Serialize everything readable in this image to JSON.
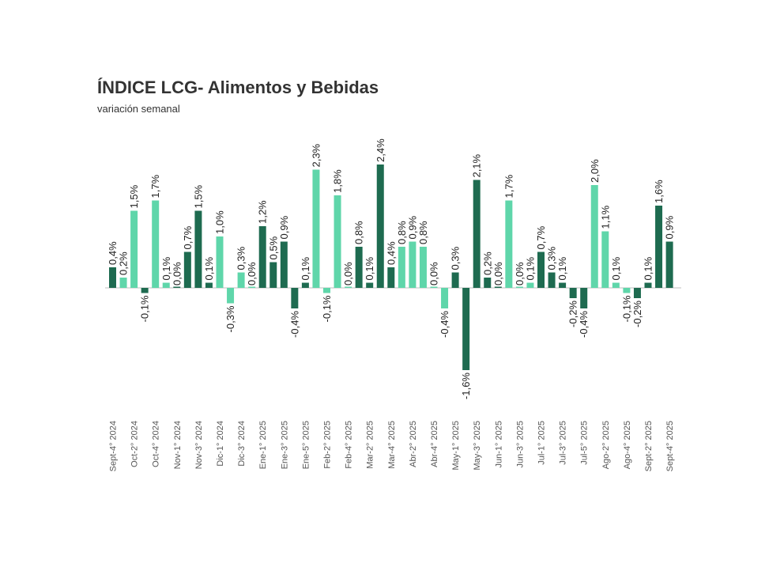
{
  "chart_data": {
    "type": "bar",
    "title": "ÍNDICE LCG- Alimentos y Bebidas",
    "subtitle": "variación semanal",
    "colors": {
      "dark": "#1e6b50",
      "light": "#5fd6aa",
      "axis": "#bfbfbf"
    },
    "values": [
      0.4,
      0.2,
      1.5,
      -0.1,
      1.7,
      0.1,
      0.0,
      0.7,
      1.5,
      0.1,
      1.0,
      -0.3,
      0.3,
      0.0,
      1.2,
      0.5,
      0.9,
      -0.4,
      0.1,
      2.3,
      -0.1,
      1.8,
      0.0,
      0.8,
      0.1,
      2.4,
      0.4,
      0.8,
      0.9,
      0.8,
      0.0,
      -0.4,
      0.3,
      -1.6,
      2.1,
      0.2,
      0.0,
      1.7,
      0.0,
      0.1,
      0.7,
      0.3,
      0.1,
      -0.2,
      -0.4,
      2.0,
      1.1,
      0.1,
      -0.1,
      -0.2,
      0.1,
      1.6,
      0.9
    ],
    "labels": [
      "0,4%",
      "0,2%",
      "1,5%",
      "-0,1%",
      "1,7%",
      "0,1%",
      "0,0%",
      "0,7%",
      "1,5%",
      "0,1%",
      "1,0%",
      "-0,3%",
      "0,3%",
      "0,0%",
      "1,2%",
      "0,5%",
      "0,9%",
      "-0,4%",
      "0,1%",
      "2,3%",
      "-0,1%",
      "1,8%",
      "0,0%",
      "0,8%",
      "0,1%",
      "2,4%",
      "0,4%",
      "0,8%",
      "0,9%",
      "0,8%",
      "0,0%",
      "-0,4%",
      "0,3%",
      "-1,6%",
      "2,1%",
      "0,2%",
      "0,0%",
      "1,7%",
      "0,0%",
      "0,1%",
      "0,7%",
      "0,3%",
      "0,1%",
      "-0,2%",
      "-0,4%",
      "2,0%",
      "1,1%",
      "0,1%",
      "-0,1%",
      "-0,2%",
      "0,1%",
      "1,6%",
      "0,9%"
    ],
    "shade": [
      "d",
      "l",
      "l",
      "d",
      "l",
      "l",
      "d",
      "d",
      "d",
      "d",
      "l",
      "l",
      "l",
      "l",
      "d",
      "d",
      "d",
      "d",
      "d",
      "l",
      "l",
      "l",
      "l",
      "d",
      "d",
      "d",
      "d",
      "l",
      "l",
      "l",
      "l",
      "l",
      "d",
      "d",
      "d",
      "d",
      "d",
      "l",
      "l",
      "l",
      "d",
      "d",
      "d",
      "d",
      "d",
      "l",
      "l",
      "l",
      "l",
      "d",
      "d",
      "d",
      "d"
    ],
    "x_tick_labels": [
      "Sept-4° 2024",
      "Oct-2° 2024",
      "Oct-4° 2024",
      "Nov-1° 2024",
      "Nov-3° 2024",
      "Dic-1° 2024",
      "Dic-3° 2024",
      "Ene-1° 2025",
      "Ene-3° 2025",
      "Ene-5° 2025",
      "Feb-2° 2025",
      "Feb-4° 2025",
      "Mar-2° 2025",
      "Mar-4° 2025",
      "Abr-2° 2025",
      "Abr-4° 2025",
      "May-1° 2025",
      "May-3° 2025",
      "Jun-1° 2025",
      "Jun-3° 2025",
      "Jul-1° 2025",
      "Jul-3° 2025",
      "Jul-5° 2025",
      "Ago-2° 2025",
      "Ago-4° 2025",
      "Sept-2° 2025",
      "Sept-4° 2025"
    ],
    "x_tick_every": 2,
    "ylim": [
      -1.7,
      2.6
    ],
    "grid": false,
    "legend": "none"
  }
}
